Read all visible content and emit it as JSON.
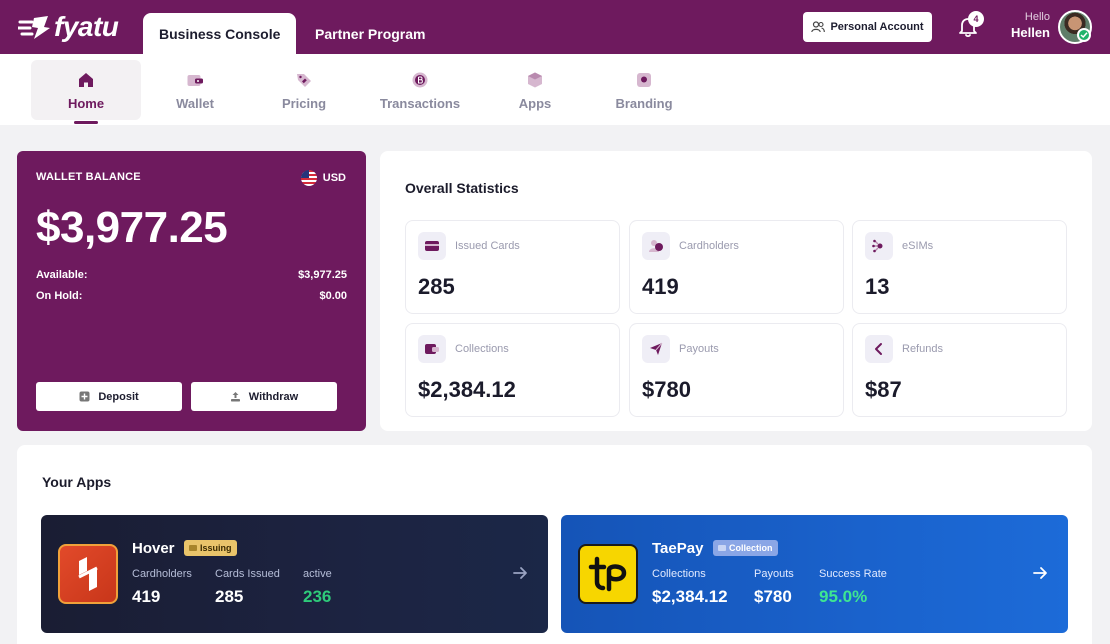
{
  "brand": {
    "name": "fyatu"
  },
  "top_tabs": [
    {
      "label": "Business Console",
      "active": true
    },
    {
      "label": "Partner Program",
      "active": false
    }
  ],
  "header": {
    "personal_account_label": "Personal Account",
    "notification_count": "4",
    "greeting": "Hello",
    "user_name": "Hellen"
  },
  "nav": {
    "items": [
      {
        "label": "Home",
        "icon": "home-icon",
        "active": true
      },
      {
        "label": "Wallet",
        "icon": "wallet-icon",
        "active": false
      },
      {
        "label": "Pricing",
        "icon": "tag-icon",
        "active": false
      },
      {
        "label": "Transactions",
        "icon": "coin-icon",
        "active": false
      },
      {
        "label": "Apps",
        "icon": "cube-icon",
        "active": false
      },
      {
        "label": "Branding",
        "icon": "palette-icon",
        "active": false
      }
    ]
  },
  "wallet": {
    "label": "WALLET BALANCE",
    "currency": "USD",
    "balance": "$3,977.25",
    "available_label": "Available:",
    "available_value": "$3,977.25",
    "on_hold_label": "On Hold:",
    "on_hold_value": "$0.00",
    "deposit_label": "Deposit",
    "withdraw_label": "Withdraw"
  },
  "stats": {
    "title": "Overall Statistics",
    "items": [
      {
        "label": "Issued Cards",
        "value": "285",
        "icon": "card-icon"
      },
      {
        "label": "Cardholders",
        "value": "419",
        "icon": "users-icon"
      },
      {
        "label": "eSIMs",
        "value": "13",
        "icon": "sim-icon"
      },
      {
        "label": "Collections",
        "value": "$2,384.12",
        "icon": "collections-icon"
      },
      {
        "label": "Payouts",
        "value": "$780",
        "icon": "send-icon"
      },
      {
        "label": "Refunds",
        "value": "$87",
        "icon": "refund-icon"
      }
    ]
  },
  "apps": {
    "title": "Your Apps",
    "list": [
      {
        "name": "Hover",
        "badge": "Issuing",
        "stats": [
          {
            "label": "Cardholders",
            "value": "419"
          },
          {
            "label": "Cards Issued",
            "value": "285"
          },
          {
            "label": "active",
            "value": "236"
          }
        ]
      },
      {
        "name": "TaePay",
        "badge": "Collection",
        "stats": [
          {
            "label": "Collections",
            "value": "$2,384.12"
          },
          {
            "label": "Payouts",
            "value": "$780"
          },
          {
            "label": "Success Rate",
            "value": "95.0%"
          }
        ]
      }
    ]
  },
  "colors": {
    "brand_purple": "#6e1a5e",
    "hover_card": "#1a1d33",
    "taepay_card": "#1554b7",
    "success_green": "#2ecb7a",
    "issuing_badge": "#e9c46a",
    "collection_badge": "#8aa6e6"
  }
}
